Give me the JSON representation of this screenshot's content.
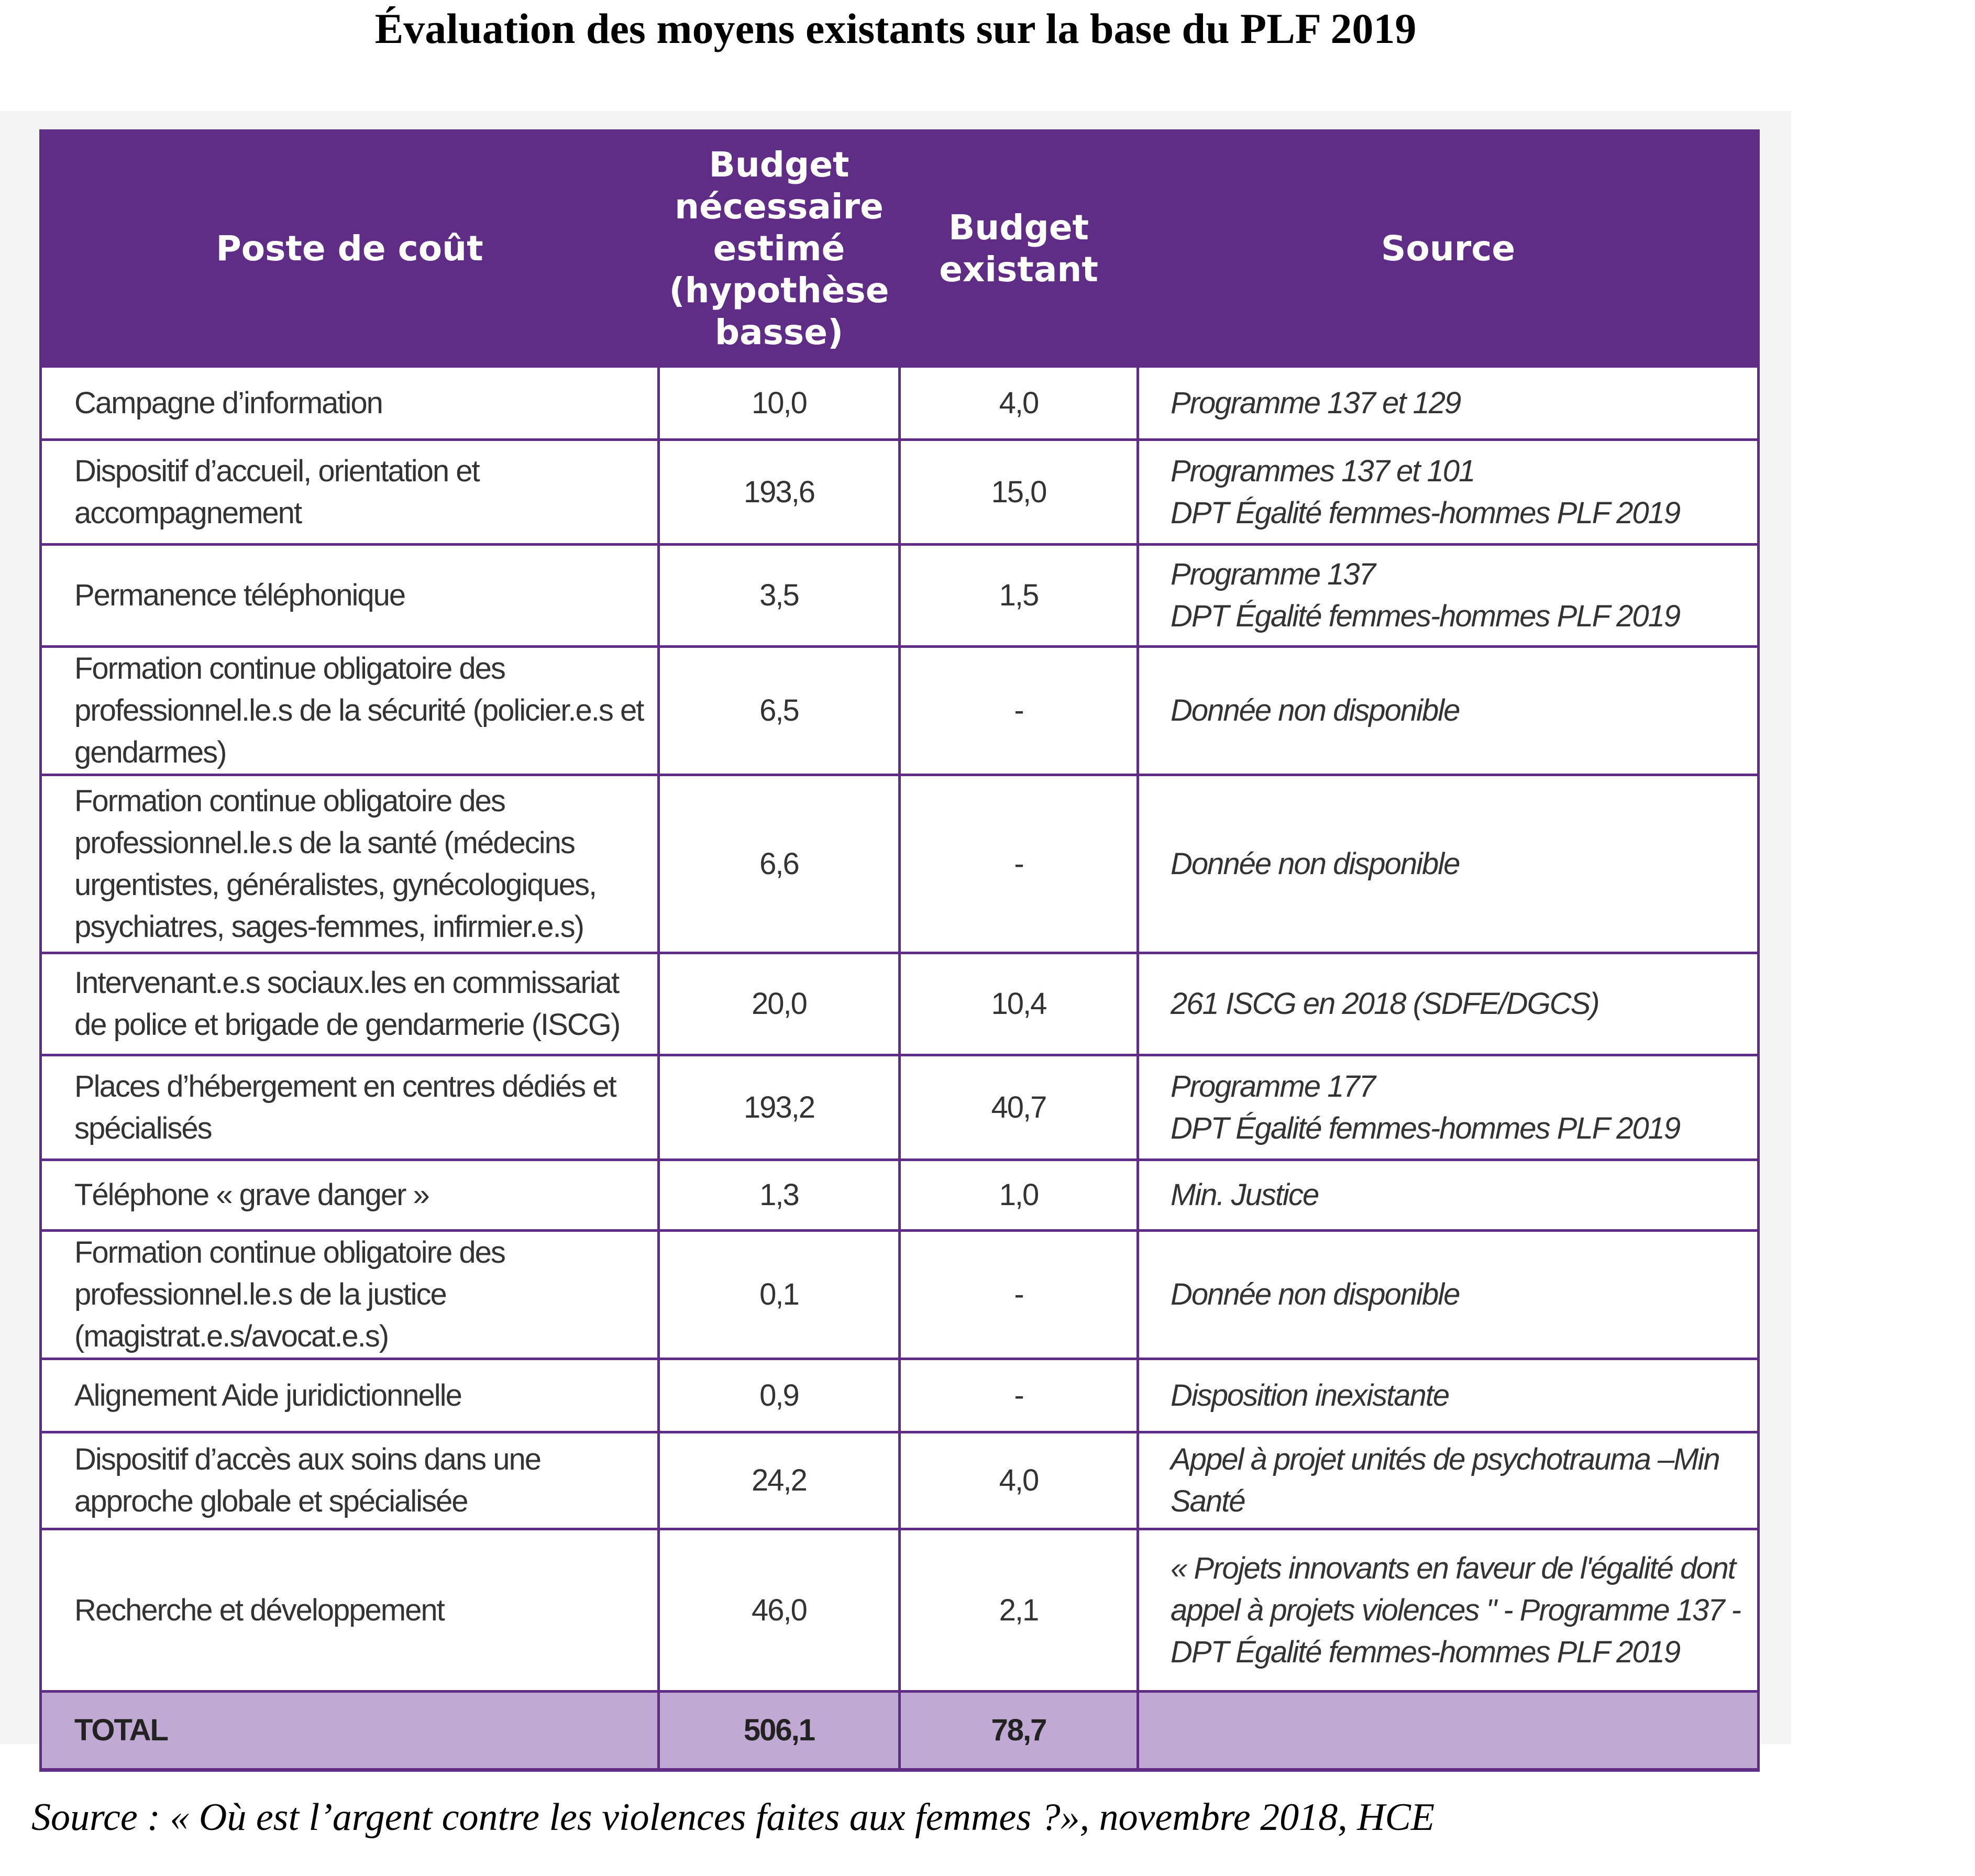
{
  "title": "Évaluation des moyens existants sur la base du PLF 2019",
  "table": {
    "headers": {
      "col1": "Poste de coût",
      "col2": "Budget nécessaire estimé (hypothèse basse)",
      "col3": "Budget existant",
      "col4": "Source"
    },
    "rows": [
      {
        "poste": "Campagne d’information",
        "necessaire": "10,0",
        "existant": "4,0",
        "source": [
          "Programme 137 et 129"
        ]
      },
      {
        "poste": "Dispositif d’accueil, orientation et accompagnement",
        "necessaire": "193,6",
        "existant": "15,0",
        "source": [
          "Programmes 137 et 101",
          "DPT Égalité femmes-hommes PLF 2019"
        ]
      },
      {
        "poste": "Permanence téléphonique",
        "necessaire": "3,5",
        "existant": "1,5",
        "source": [
          "Programme 137",
          "DPT Égalité femmes-hommes PLF 2019"
        ]
      },
      {
        "poste": "Formation continue obligatoire des professionnel.le.s de la sécurité (policier.e.s et gendarmes)",
        "necessaire": "6,5",
        "existant": "-",
        "source": [
          "Donnée non disponible"
        ]
      },
      {
        "poste": "Formation continue obligatoire des professionnel.le.s de la santé (médecins urgentistes, généralistes, gynécologiques, psychiatres, sages-femmes, infirmier.e.s)",
        "necessaire": "6,6",
        "existant": "-",
        "source": [
          "Donnée non disponible"
        ]
      },
      {
        "poste": "Intervenant.e.s sociaux.les en commissariat de police et brigade de gendarmerie (ISCG)",
        "necessaire": "20,0",
        "existant": "10,4",
        "source": [
          "261 ISCG en 2018 (SDFE/DGCS)"
        ]
      },
      {
        "poste": "Places d’hébergement en centres dédiés et spécialisés",
        "necessaire": "193,2",
        "existant": "40,7",
        "source": [
          "Programme 177",
          "DPT Égalité femmes-hommes PLF 2019"
        ]
      },
      {
        "poste": "Téléphone « grave danger »",
        "necessaire": "1,3",
        "existant": "1,0",
        "source": [
          "Min. Justice"
        ]
      },
      {
        "poste": "Formation continue obligatoire des professionnel.le.s de la justice (magistrat.e.s/avocat.e.s)",
        "necessaire": "0,1",
        "existant": "-",
        "source": [
          "Donnée non disponible"
        ]
      },
      {
        "poste": "Alignement Aide juridictionnelle",
        "necessaire": "0,9",
        "existant": "-",
        "source": [
          "Disposition inexistante"
        ]
      },
      {
        "poste": "Dispositif d’accès aux soins dans une approche globale et spécialisée",
        "necessaire": "24,2",
        "existant": "4,0",
        "source": [
          "Appel à projet unités de psychotrauma –Min Santé"
        ]
      },
      {
        "poste": "Recherche et développement",
        "necessaire": "46,0",
        "existant": "2,1",
        "source": [
          "« Projets innovants en faveur de l'égalité dont appel à projets violences \" - Programme 137 - DPT Égalité femmes-hommes PLF 2019"
        ]
      }
    ],
    "total": {
      "label": "TOTAL",
      "necessaire": "506,1",
      "existant": "78,7",
      "source": ""
    }
  },
  "source_note": "Source : « Où est l’argent contre les violences faites aux femmes ?», novembre 2018, HCE",
  "colors": {
    "header_bg": "#5f2d85",
    "total_bg": "#c0a9d3",
    "border": "#5f2d85"
  }
}
